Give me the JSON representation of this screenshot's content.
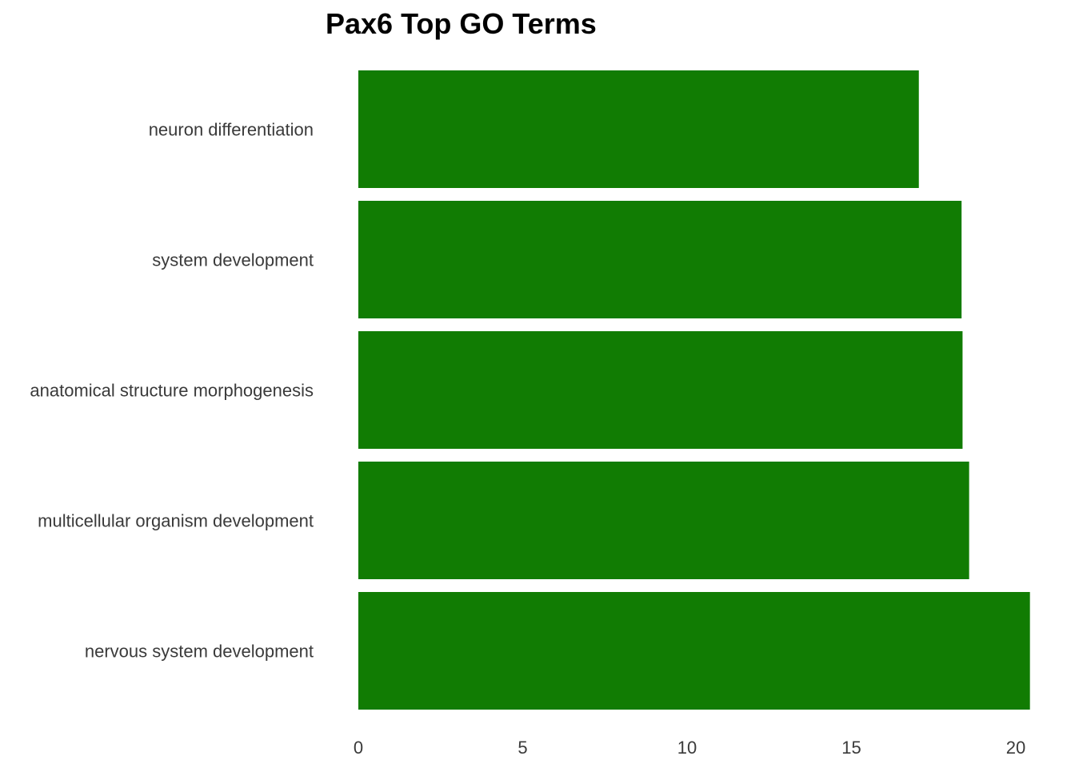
{
  "chart_data": {
    "type": "bar",
    "orientation": "horizontal",
    "title": "Pax6 Top GO Terms",
    "xlabel": "",
    "ylabel": "",
    "categories": [
      "neuron differentiation",
      "system development",
      "anatomical structure morphogenesis",
      "multicellular organism development",
      "nervous system development"
    ],
    "values": [
      17.05,
      18.35,
      18.38,
      18.58,
      20.43
    ],
    "xlim": [
      0,
      20.5
    ],
    "xticks": [
      0,
      5,
      10,
      15,
      20
    ],
    "xtick_labels": [
      "0",
      "5",
      "10",
      "15",
      "20"
    ],
    "bar_color": "#117c03",
    "grid": false,
    "legend": "none"
  }
}
